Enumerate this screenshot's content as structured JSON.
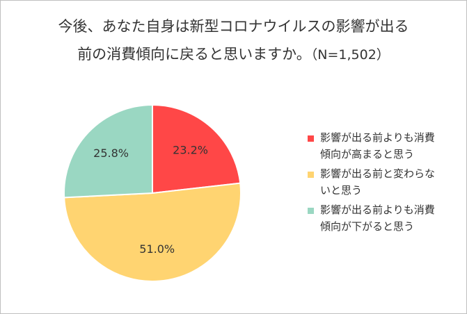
{
  "chart_data": {
    "type": "pie",
    "title_line1": "今後、あなた自身は新型コロナウイルスの影響が出る",
    "title_line2": "前の消費傾向に戻ると思いますか。",
    "sample_size": "（N=1,502）",
    "slices": [
      {
        "label": "影響が出る前よりも消費\n傾向が高まると思う",
        "value": 23.2,
        "display": "23.2%",
        "color": "#ff4747"
      },
      {
        "label": "影響が出る前と変わらな\nいと思う",
        "value": 51.0,
        "display": "51.0%",
        "color": "#ffd471"
      },
      {
        "label": "影響が出る前よりも消費\n傾向が下がると思う",
        "value": 25.8,
        "display": "25.8%",
        "color": "#9ad7c2"
      }
    ],
    "legend_position": "right",
    "start_angle_deg": 0,
    "direction": "clockwise"
  }
}
